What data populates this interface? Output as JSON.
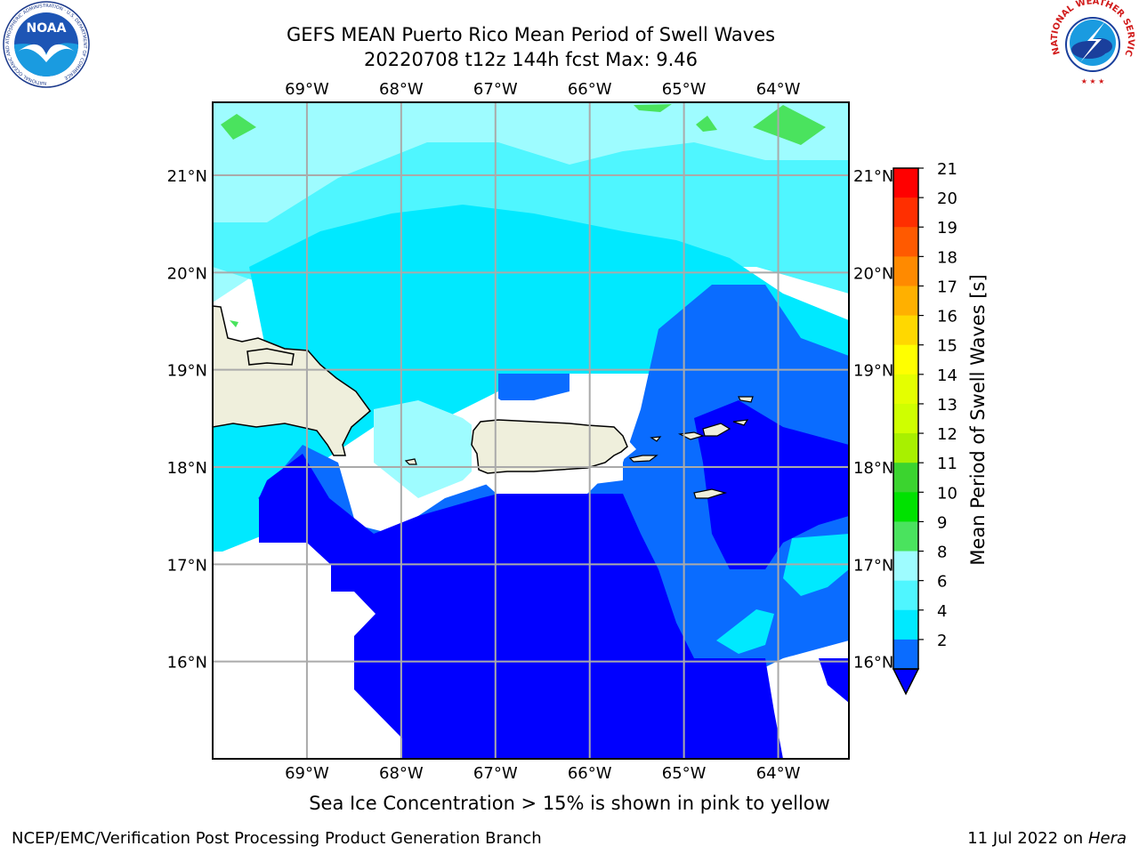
{
  "title": {
    "line1": "GEFS MEAN Puerto Rico Mean Period of Swell Waves",
    "line2": "20220708 t12z 144h fcst   Max: 9.46"
  },
  "map": {
    "lon_ticks": [
      "69°W",
      "68°W",
      "67°W",
      "66°W",
      "65°W",
      "64°W"
    ],
    "lon_values": [
      -69,
      -68,
      -67,
      -66,
      -65,
      -64
    ],
    "lat_ticks": [
      "21°N",
      "20°N",
      "19°N",
      "18°N",
      "17°N",
      "16°N"
    ],
    "lat_values": [
      21,
      20,
      19,
      18,
      17,
      16
    ],
    "lon_range": [
      -70,
      -63.25
    ],
    "lat_range": [
      15,
      21.75
    ],
    "grid": true,
    "land_color": "#efefdc",
    "ocean_fill_colors": {
      "2-4": "#0000ff",
      "4-6": "#0a6cff",
      "6-8": "#00e9ff",
      "8-9": "#4ff6ff",
      "9-10": "#9efcff",
      "10-11": "#4ae35e"
    }
  },
  "colorbar": {
    "label": "Mean Period of Swell Waves [s]",
    "ticks": [
      "21",
      "20",
      "19",
      "18",
      "17",
      "16",
      "15",
      "14",
      "13",
      "12",
      "11",
      "10",
      "9",
      "8",
      "6",
      "4",
      "2"
    ],
    "colors": [
      "#ff0000",
      "#ff2f00",
      "#ff5a00",
      "#ff8a00",
      "#ffb000",
      "#ffd800",
      "#ffff00",
      "#e4ff00",
      "#cfff00",
      "#a8f000",
      "#3bd42f",
      "#00e200",
      "#4ae35e",
      "#9efcff",
      "#4ff6ff",
      "#00e9ff",
      "#0a6cff"
    ],
    "extend_color": "#0000ff"
  },
  "sea_ice_note": "Sea Ice Concentration > 15% is shown in pink to yellow",
  "footer": {
    "left": "NCEP/EMC/Verification Post Processing Product Generation Branch",
    "right_prefix": "11 Jul 2022 on ",
    "right_host": "Hera"
  },
  "logos": {
    "noaa_text": "NOAA",
    "noaa_ring_text": "NATIONAL OCEANIC AND ATMOSPHERIC ADMINISTRATION · U.S. DEPARTMENT OF COMMERCE",
    "nws_ring_text": "NATIONAL WEATHER SERVICE"
  }
}
